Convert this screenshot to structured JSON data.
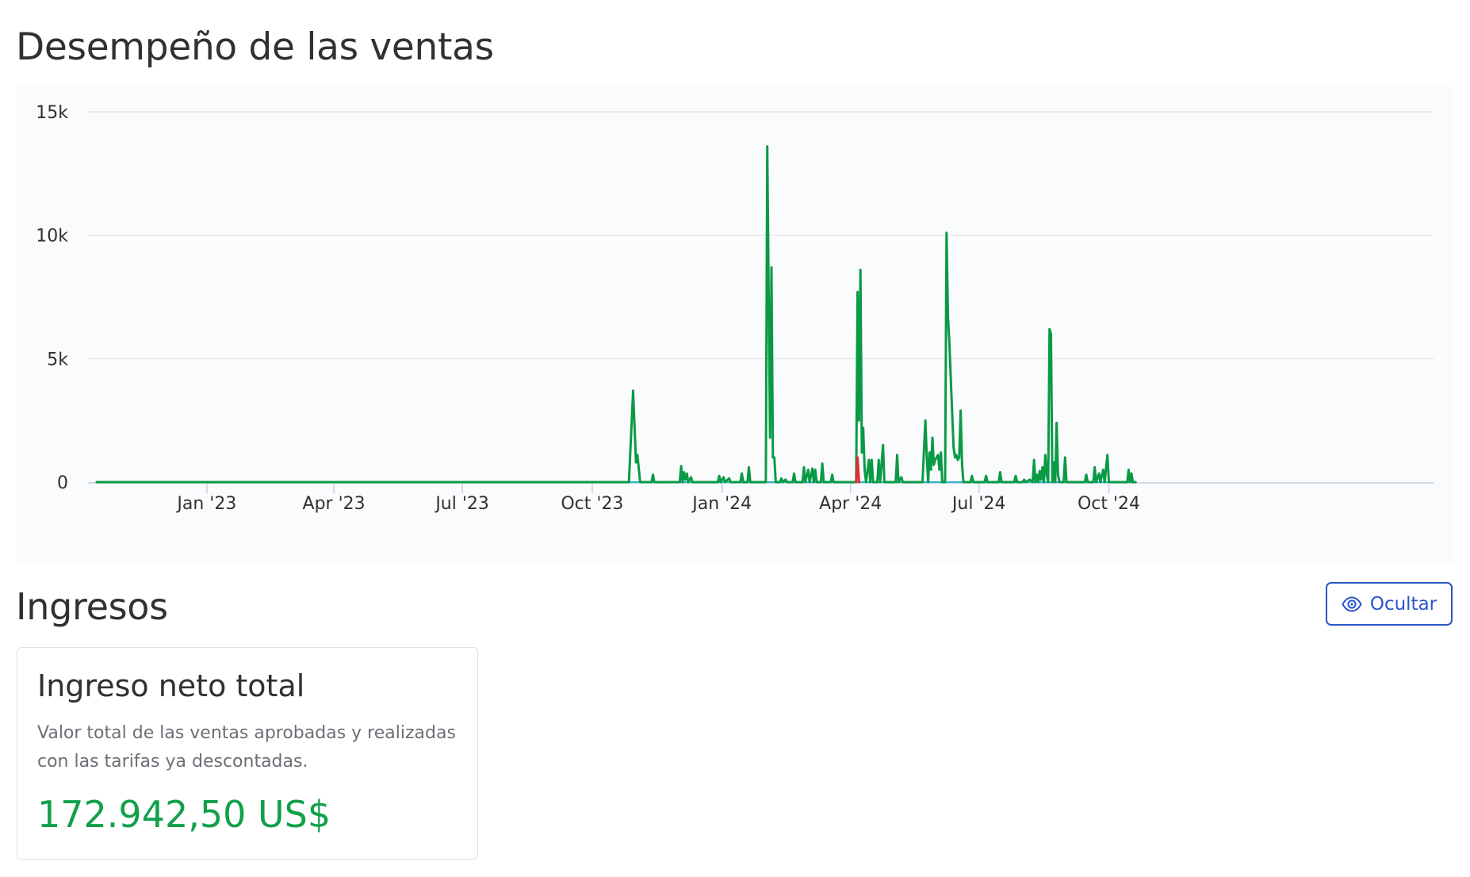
{
  "sales_section": {
    "title": "Desempeño de las ventas"
  },
  "chart_data": {
    "type": "line",
    "title": "",
    "xlabel": "",
    "ylabel": "",
    "x_ticks": [
      "Jan '23",
      "Apr '23",
      "Jul '23",
      "Oct '23",
      "Jan '24",
      "Apr '24",
      "Jul '24",
      "Oct '24"
    ],
    "y_ticks": [
      "0",
      "5k",
      "10k",
      "15k"
    ],
    "ylim": [
      0,
      15000
    ],
    "xlim": [
      "2022-10-15",
      "2024-11-27"
    ],
    "grid": true,
    "legend": "none",
    "series": [
      {
        "color": "#0a9a45",
        "points": [
          [
            "2022-10-15",
            0
          ],
          [
            "2023-10-27",
            0
          ],
          [
            "2023-10-30",
            3700
          ],
          [
            "2023-11-01",
            800
          ],
          [
            "2023-11-02",
            1100
          ],
          [
            "2023-11-04",
            0
          ],
          [
            "2023-11-12",
            0
          ],
          [
            "2023-11-13",
            300
          ],
          [
            "2023-11-14",
            0
          ],
          [
            "2023-12-02",
            0
          ],
          [
            "2023-12-03",
            650
          ],
          [
            "2023-12-04",
            0
          ],
          [
            "2023-12-05",
            400
          ],
          [
            "2023-12-06",
            100
          ],
          [
            "2023-12-07",
            350
          ],
          [
            "2023-12-08",
            0
          ],
          [
            "2023-12-10",
            200
          ],
          [
            "2023-12-11",
            0
          ],
          [
            "2023-12-29",
            0
          ],
          [
            "2023-12-30",
            250
          ],
          [
            "2023-12-31",
            0
          ],
          [
            "2024-01-02",
            200
          ],
          [
            "2024-01-03",
            0
          ],
          [
            "2024-01-06",
            150
          ],
          [
            "2024-01-07",
            0
          ],
          [
            "2024-01-14",
            0
          ],
          [
            "2024-01-15",
            350
          ],
          [
            "2024-01-16",
            0
          ],
          [
            "2024-01-19",
            0
          ],
          [
            "2024-01-20",
            600
          ],
          [
            "2024-01-21",
            0
          ],
          [
            "2024-02-01",
            0
          ],
          [
            "2024-02-02",
            13600
          ],
          [
            "2024-02-04",
            1800
          ],
          [
            "2024-02-05",
            8700
          ],
          [
            "2024-02-06",
            1000
          ],
          [
            "2024-02-07",
            1000
          ],
          [
            "2024-02-08",
            0
          ],
          [
            "2024-02-11",
            0
          ],
          [
            "2024-02-12",
            150
          ],
          [
            "2024-02-13",
            0
          ],
          [
            "2024-02-15",
            100
          ],
          [
            "2024-02-16",
            0
          ],
          [
            "2024-02-20",
            0
          ],
          [
            "2024-02-21",
            350
          ],
          [
            "2024-02-22",
            0
          ],
          [
            "2024-02-27",
            0
          ],
          [
            "2024-02-28",
            600
          ],
          [
            "2024-02-29",
            0
          ],
          [
            "2024-03-02",
            500
          ],
          [
            "2024-03-03",
            0
          ],
          [
            "2024-03-05",
            550
          ],
          [
            "2024-03-06",
            0
          ],
          [
            "2024-03-07",
            500
          ],
          [
            "2024-03-08",
            0
          ],
          [
            "2024-03-11",
            0
          ],
          [
            "2024-03-12",
            750
          ],
          [
            "2024-03-13",
            0
          ],
          [
            "2024-03-18",
            0
          ],
          [
            "2024-03-19",
            300
          ],
          [
            "2024-03-20",
            0
          ],
          [
            "2024-04-05",
            0
          ],
          [
            "2024-04-06",
            7700
          ],
          [
            "2024-04-07",
            2500
          ],
          [
            "2024-04-08",
            8600
          ],
          [
            "2024-04-09",
            1200
          ],
          [
            "2024-04-10",
            2200
          ],
          [
            "2024-04-11",
            500
          ],
          [
            "2024-04-12",
            0
          ],
          [
            "2024-04-14",
            900
          ],
          [
            "2024-04-15",
            0
          ],
          [
            "2024-04-16",
            900
          ],
          [
            "2024-04-17",
            0
          ],
          [
            "2024-04-20",
            0
          ],
          [
            "2024-04-21",
            900
          ],
          [
            "2024-04-22",
            0
          ],
          [
            "2024-04-24",
            1500
          ],
          [
            "2024-04-25",
            0
          ],
          [
            "2024-05-03",
            0
          ],
          [
            "2024-05-04",
            1100
          ],
          [
            "2024-05-05",
            0
          ],
          [
            "2024-05-07",
            200
          ],
          [
            "2024-05-08",
            0
          ],
          [
            "2024-05-22",
            0
          ],
          [
            "2024-05-24",
            2500
          ],
          [
            "2024-05-25",
            1000
          ],
          [
            "2024-05-26",
            0
          ],
          [
            "2024-05-27",
            1200
          ],
          [
            "2024-05-28",
            500
          ],
          [
            "2024-05-29",
            1800
          ],
          [
            "2024-05-30",
            700
          ],
          [
            "2024-05-31",
            900
          ],
          [
            "2024-06-01",
            1000
          ],
          [
            "2024-06-02",
            1100
          ],
          [
            "2024-06-03",
            500
          ],
          [
            "2024-06-04",
            1200
          ],
          [
            "2024-06-05",
            0
          ],
          [
            "2024-06-07",
            0
          ],
          [
            "2024-06-08",
            10100
          ],
          [
            "2024-06-09",
            6700
          ],
          [
            "2024-06-10",
            5700
          ],
          [
            "2024-06-12",
            2800
          ],
          [
            "2024-06-13",
            1400
          ],
          [
            "2024-06-14",
            1000
          ],
          [
            "2024-06-15",
            1100
          ],
          [
            "2024-06-16",
            900
          ],
          [
            "2024-06-17",
            1000
          ],
          [
            "2024-06-18",
            2900
          ],
          [
            "2024-06-19",
            700
          ],
          [
            "2024-06-20",
            0
          ],
          [
            "2024-06-25",
            0
          ],
          [
            "2024-06-26",
            250
          ],
          [
            "2024-06-27",
            0
          ],
          [
            "2024-07-05",
            0
          ],
          [
            "2024-07-06",
            250
          ],
          [
            "2024-07-07",
            0
          ],
          [
            "2024-07-15",
            0
          ],
          [
            "2024-07-16",
            400
          ],
          [
            "2024-07-17",
            0
          ],
          [
            "2024-07-26",
            0
          ],
          [
            "2024-07-27",
            250
          ],
          [
            "2024-07-28",
            0
          ],
          [
            "2024-08-01",
            0
          ],
          [
            "2024-08-02",
            100
          ],
          [
            "2024-08-03",
            0
          ],
          [
            "2024-08-06",
            100
          ],
          [
            "2024-08-07",
            50
          ],
          [
            "2024-08-08",
            0
          ],
          [
            "2024-08-09",
            900
          ],
          [
            "2024-08-10",
            0
          ],
          [
            "2024-08-11",
            300
          ],
          [
            "2024-08-12",
            0
          ],
          [
            "2024-08-13",
            450
          ],
          [
            "2024-08-14",
            100
          ],
          [
            "2024-08-15",
            600
          ],
          [
            "2024-08-16",
            0
          ],
          [
            "2024-08-17",
            1100
          ],
          [
            "2024-08-18",
            300
          ],
          [
            "2024-08-19",
            0
          ],
          [
            "2024-08-20",
            6200
          ],
          [
            "2024-08-21",
            6000
          ],
          [
            "2024-08-22",
            0
          ],
          [
            "2024-08-23",
            800
          ],
          [
            "2024-08-24",
            0
          ],
          [
            "2024-08-25",
            2400
          ],
          [
            "2024-08-26",
            300
          ],
          [
            "2024-08-27",
            0
          ],
          [
            "2024-08-30",
            0
          ],
          [
            "2024-08-31",
            1000
          ],
          [
            "2024-09-01",
            0
          ],
          [
            "2024-09-14",
            0
          ],
          [
            "2024-09-15",
            300
          ],
          [
            "2024-09-16",
            0
          ],
          [
            "2024-09-20",
            0
          ],
          [
            "2024-09-21",
            600
          ],
          [
            "2024-09-22",
            0
          ],
          [
            "2024-09-24",
            350
          ],
          [
            "2024-09-25",
            0
          ],
          [
            "2024-09-27",
            500
          ],
          [
            "2024-09-28",
            0
          ],
          [
            "2024-09-30",
            1100
          ],
          [
            "2024-10-01",
            0
          ],
          [
            "2024-10-14",
            0
          ],
          [
            "2024-10-15",
            500
          ],
          [
            "2024-10-16",
            0
          ],
          [
            "2024-10-17",
            350
          ],
          [
            "2024-10-18",
            0
          ],
          [
            "2024-10-20",
            0
          ]
        ]
      },
      {
        "color": "#dd2e2e",
        "points": [
          [
            "2024-04-05",
            0
          ],
          [
            "2024-04-06",
            1000
          ],
          [
            "2024-04-07",
            0
          ]
        ]
      },
      {
        "color": "#2fb3d6",
        "points": [
          [
            "2022-10-15",
            0
          ],
          [
            "2024-10-20",
            0
          ]
        ]
      }
    ]
  },
  "hide_button": {
    "label": "Ocultar",
    "icon": "eye-icon"
  },
  "income_section": {
    "title": "Ingresos",
    "card": {
      "title": "Ingreso neto total",
      "description": "Valor total de las ventas aprobadas y realizadas con las tarifas ya descontadas.",
      "value": "172.942,50 US$",
      "value_color": "#12a04a"
    }
  }
}
